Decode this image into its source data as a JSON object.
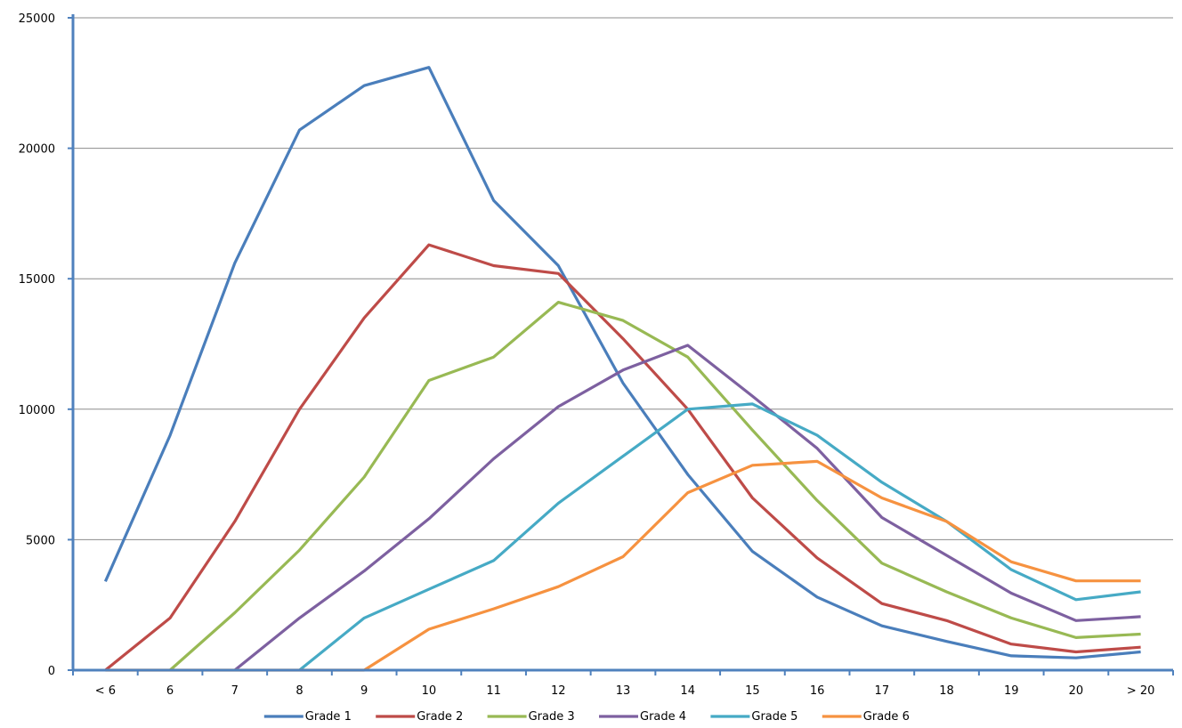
{
  "chart_data": {
    "type": "line",
    "title": "",
    "xlabel": "",
    "ylabel": "",
    "categories": [
      "< 6",
      "6",
      "7",
      "8",
      "9",
      "10",
      "11",
      "12",
      "13",
      "14",
      "15",
      "16",
      "17",
      "18",
      "19",
      "20",
      "> 20"
    ],
    "ylim": [
      0,
      25000
    ],
    "yticks": [
      0,
      5000,
      10000,
      15000,
      20000,
      25000
    ],
    "grid": true,
    "legend": "bottom",
    "series": [
      {
        "name": "Grade 1",
        "color": "#4a7ebb",
        "values": [
          3400,
          9000,
          15600,
          20700,
          22400,
          23100,
          18000,
          15500,
          11000,
          7500,
          4550,
          2800,
          1700,
          1100,
          550,
          470,
          700
        ]
      },
      {
        "name": "Grade 2",
        "color": "#be4b48",
        "values": [
          0,
          2000,
          5700,
          10000,
          13500,
          16300,
          15500,
          15200,
          12700,
          10000,
          6600,
          4300,
          2550,
          1900,
          1000,
          700,
          880
        ]
      },
      {
        "name": "Grade 3",
        "color": "#98b954",
        "values": [
          null,
          0,
          2200,
          4600,
          7400,
          11100,
          12000,
          14100,
          13400,
          12000,
          9200,
          6500,
          4100,
          3000,
          2000,
          1250,
          1380
        ]
      },
      {
        "name": "Grade 4",
        "color": "#7d60a0",
        "values": [
          null,
          null,
          0,
          2000,
          3800,
          5800,
          8100,
          10100,
          11500,
          12450,
          10500,
          8500,
          5850,
          4400,
          2950,
          1900,
          2050
        ]
      },
      {
        "name": "Grade 5",
        "color": "#46aac5",
        "values": [
          null,
          null,
          null,
          0,
          2000,
          3100,
          4200,
          6400,
          8200,
          10000,
          10200,
          9000,
          7200,
          5700,
          3850,
          2700,
          3000
        ]
      },
      {
        "name": "Grade 6",
        "color": "#f69240",
        "values": [
          0,
          0,
          0,
          0,
          0,
          1570,
          2350,
          3200,
          4350,
          6800,
          7850,
          8000,
          6600,
          5700,
          4150,
          3420,
          3420
        ]
      }
    ]
  }
}
